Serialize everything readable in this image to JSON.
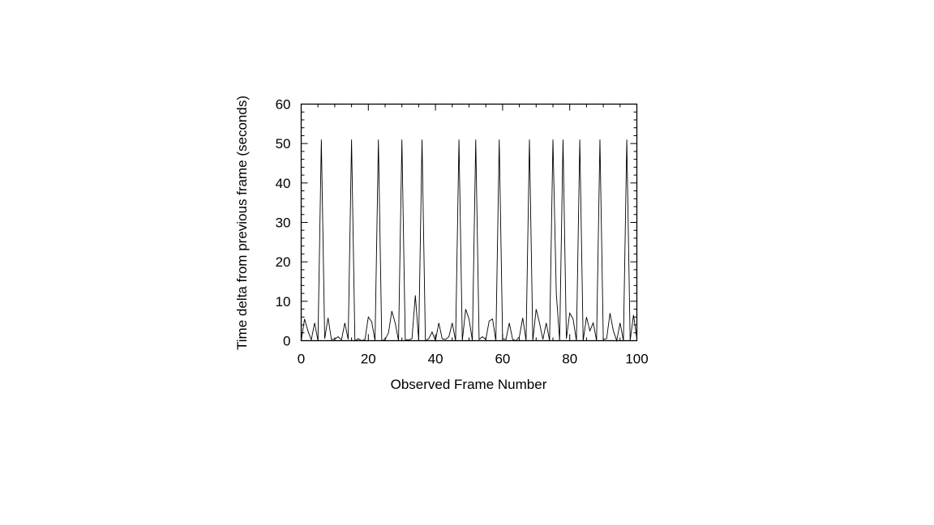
{
  "chart_data": {
    "type": "line",
    "title": "",
    "xlabel": "Observed Frame Number",
    "ylabel": "Time delta from previous frame (seconds)",
    "xlim": [
      0,
      100
    ],
    "ylim": [
      0,
      60
    ],
    "xticks": [
      0,
      20,
      40,
      60,
      80,
      100
    ],
    "yticks": [
      0,
      10,
      20,
      30,
      40,
      50,
      60
    ],
    "grid": false,
    "legend": "none",
    "line_color": "#000000",
    "series": [
      {
        "x": [
          0,
          1,
          2,
          3,
          4,
          5,
          6,
          7,
          8,
          9,
          10,
          11,
          12,
          13,
          14,
          15,
          16,
          17,
          18,
          19,
          20,
          21,
          22,
          23,
          24,
          25,
          26,
          27,
          28,
          29,
          30,
          31,
          32,
          33,
          34,
          35,
          36,
          37,
          38,
          39,
          40,
          41,
          42,
          43,
          44,
          45,
          46,
          47,
          48,
          49,
          50,
          51,
          52,
          53,
          54,
          55,
          56,
          57,
          58,
          59,
          60,
          61,
          62,
          63,
          64,
          65,
          66,
          67,
          68,
          69,
          70,
          71,
          72,
          73,
          74,
          75,
          76,
          77,
          78,
          79,
          80,
          81,
          82,
          83,
          84,
          85,
          86,
          87,
          88,
          89,
          90,
          91,
          92,
          93,
          94,
          95,
          96,
          97,
          98,
          99,
          100
        ],
        "y": [
          0,
          5.5,
          2.5,
          0.2,
          4.5,
          0,
          51,
          0.5,
          5.8,
          0.3,
          0.4,
          1,
          0.2,
          4.5,
          0.3,
          51,
          0,
          0.5,
          0,
          0.3,
          6,
          4.8,
          0,
          51,
          0,
          0.3,
          2,
          7.5,
          4.5,
          0,
          51,
          0.3,
          0.2,
          0.5,
          11.5,
          0.2,
          51,
          0,
          0.5,
          2.2,
          0,
          4.5,
          0.5,
          0.3,
          1,
          4.5,
          0,
          51,
          0,
          8,
          5.5,
          0,
          51,
          0.3,
          1,
          0.3,
          5,
          5.5,
          0,
          51,
          0.5,
          0.3,
          4.5,
          0.3,
          0,
          1,
          5.8,
          0,
          51,
          0,
          8,
          4.5,
          0.3,
          4.5,
          0,
          51,
          12,
          0,
          51,
          0.5,
          7,
          5.5,
          0,
          51,
          0,
          6,
          2.5,
          4.5,
          0,
          51,
          0.3,
          0.5,
          7,
          2.5,
          0,
          4.5,
          0,
          51,
          0,
          6.5,
          0.5
        ]
      }
    ]
  }
}
